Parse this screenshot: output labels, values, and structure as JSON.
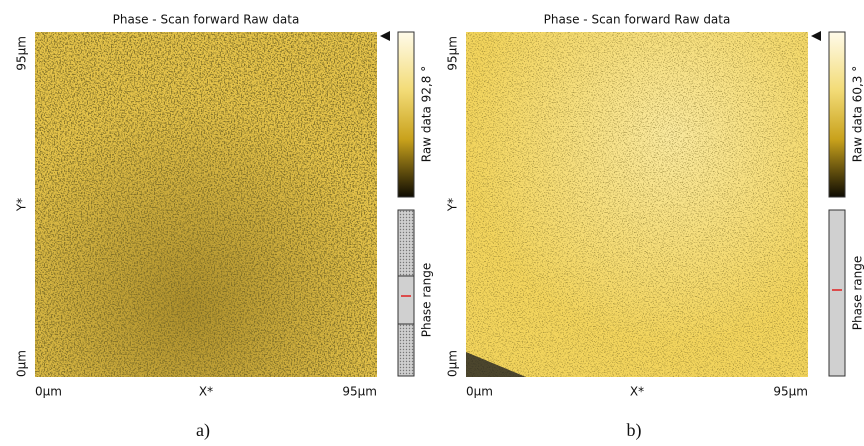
{
  "panels": [
    {
      "title": "Phase - Scan forward   Raw data",
      "y_axis": {
        "top": "95µm",
        "label": "Y*",
        "bottom": "0µm"
      },
      "x_axis": {
        "left": "0µm",
        "label": "X*",
        "right": "95µm"
      },
      "colorbar_label": "Raw data 92,8 °",
      "range_label": "Phase range",
      "caption": "a)"
    },
    {
      "title": "Phase - Scan forward   Raw data",
      "y_axis": {
        "top": "95µm",
        "label": "Y*",
        "bottom": "0µm"
      },
      "x_axis": {
        "left": "0µm",
        "label": "X*",
        "right": "95µm"
      },
      "colorbar_label": "Raw data 60,3 °",
      "range_label": "Phase range",
      "caption": "b)"
    }
  ]
}
